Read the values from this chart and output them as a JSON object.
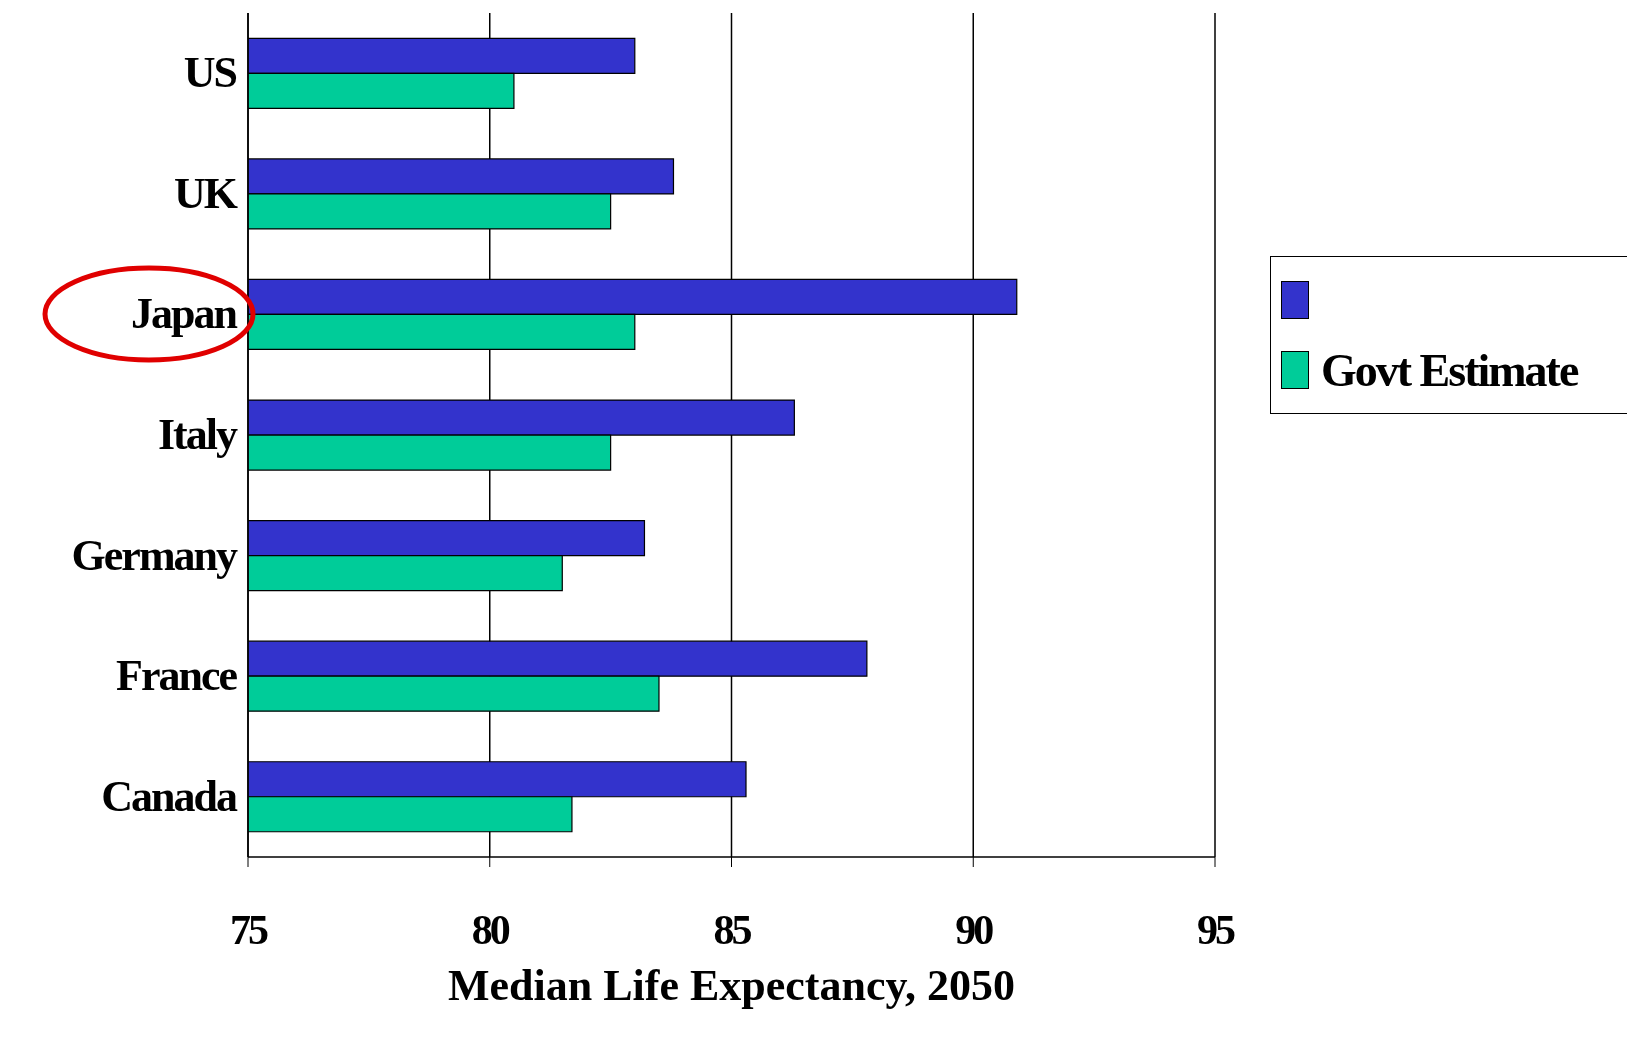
{
  "chart_data": {
    "type": "bar",
    "orientation": "horizontal",
    "xlabel": "Median Life Expectancy, 2050",
    "categories": [
      "US",
      "UK",
      "Japan",
      "Italy",
      "Germany",
      "France",
      "Canada"
    ],
    "series": [
      {
        "color": "#3333cc",
        "values": [
          83.0,
          83.8,
          90.9,
          86.3,
          83.2,
          87.8,
          85.3
        ]
      },
      {
        "name": "Govt Estimate",
        "color": "#00cc99",
        "values": [
          80.5,
          82.5,
          83.0,
          82.5,
          81.5,
          83.5,
          81.7
        ]
      }
    ],
    "xlim": [
      75,
      95
    ],
    "xticks": [
      75,
      80,
      85,
      90,
      95
    ],
    "grid": "x",
    "legend": "right"
  }
}
